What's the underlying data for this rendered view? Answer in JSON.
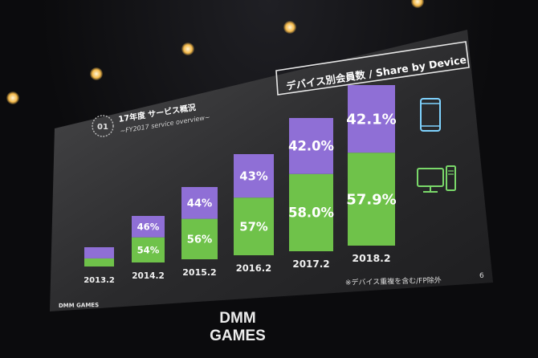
{
  "header": {
    "title_badge": "デバイス別会員数 / Share by Device",
    "section_number": "01",
    "section_title": "17年度 サービス概況",
    "section_subtitle": "~FY2017 service overview~"
  },
  "chart_data": {
    "type": "bar",
    "stacked": true,
    "normalized": true,
    "categories": [
      "2013.2",
      "2014.2",
      "2015.2",
      "2016.2",
      "2017.2",
      "2018.2"
    ],
    "total_relative": [
      0.12,
      0.29,
      0.45,
      0.63,
      0.83,
      1.0
    ],
    "series": [
      {
        "key": "pc",
        "color": "#6fc24a",
        "values": [
          null,
          54,
          56,
          57,
          58.0,
          57.9
        ],
        "labels": [
          "",
          "54%",
          "56%",
          "57%",
          "58.0%",
          "57.9%"
        ]
      },
      {
        "key": "smartphone",
        "color": "#8f6fd6",
        "values": [
          null,
          46,
          44,
          43,
          42.0,
          42.1
        ],
        "labels": [
          "",
          "46%",
          "44%",
          "43%",
          "42.0%",
          "42.1%"
        ]
      }
    ]
  },
  "legend_icons": [
    {
      "name": "smartphone-icon",
      "series": "smartphone",
      "color": "#7fd3ff"
    },
    {
      "name": "desktop-pc-icon",
      "series": "pc",
      "color": "#7ad86a"
    }
  ],
  "footer": {
    "note": "※デバイス重複を含む/FP除外",
    "page_number": "6",
    "screen_logo": "DMM GAMES",
    "stage_logo": "DMM GAMES"
  }
}
